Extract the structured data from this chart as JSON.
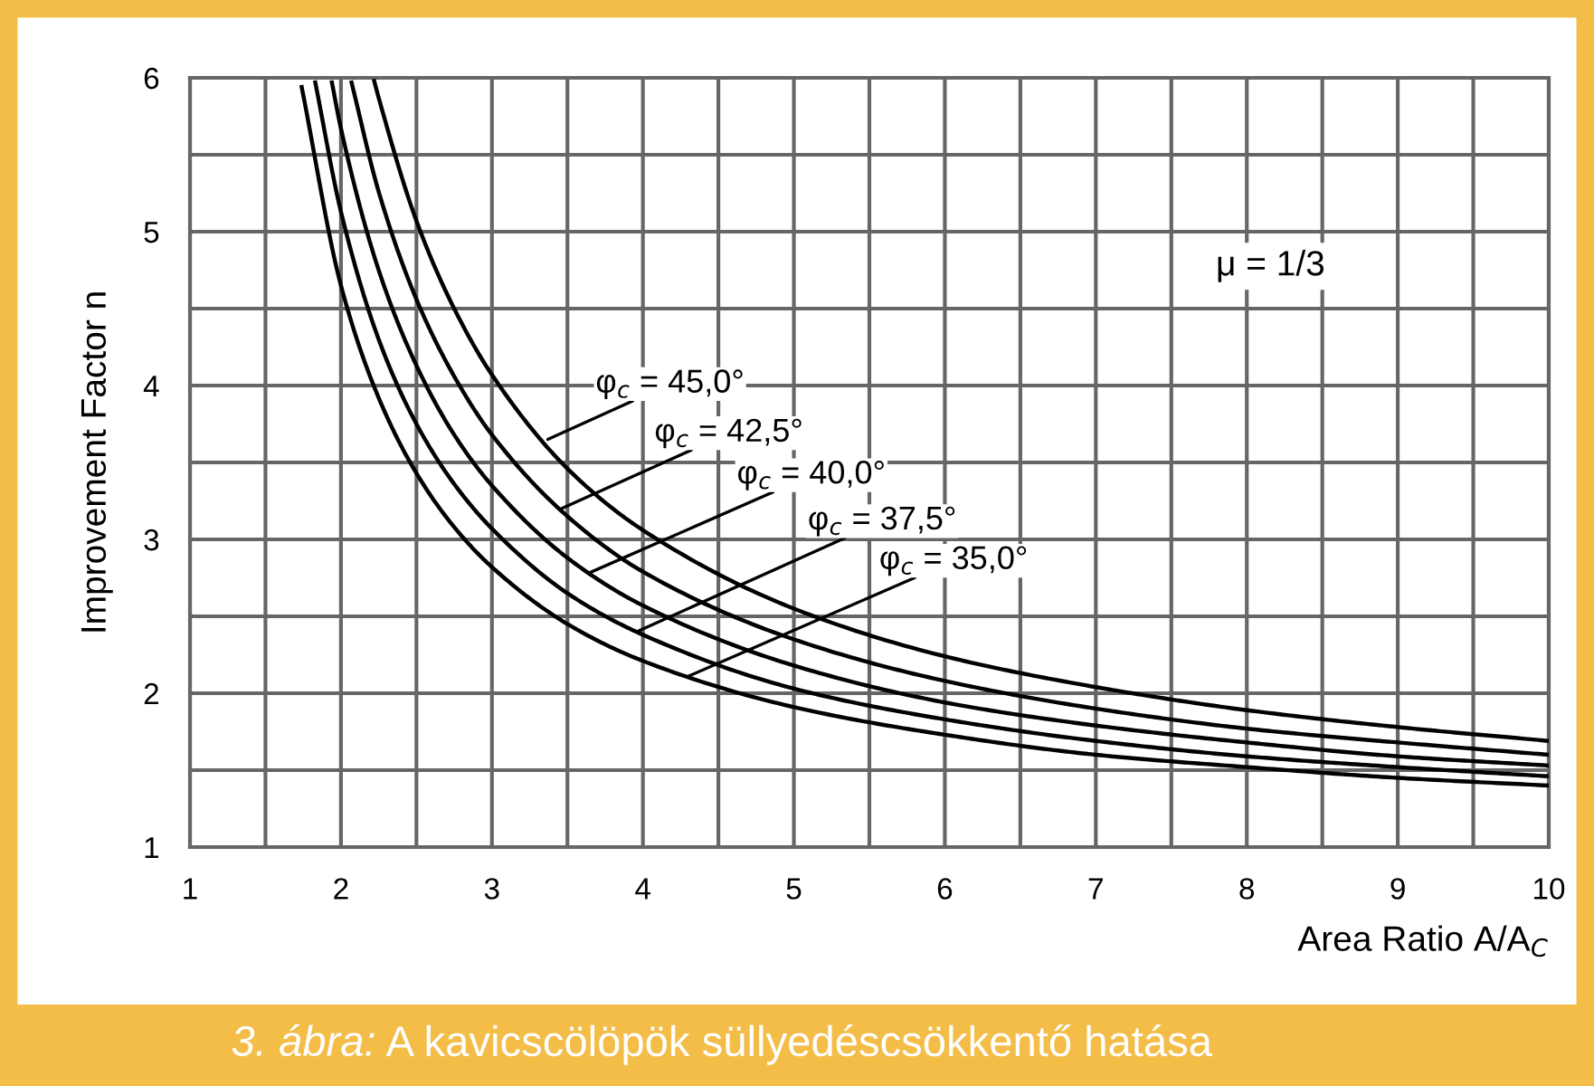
{
  "chart_data": {
    "type": "line",
    "xlabel": "Area Ratio A/A$_{C}$",
    "ylabel": "Improvement Factor n",
    "xlim": [
      1,
      10
    ],
    "ylim": [
      1,
      6
    ],
    "xticks": [
      1,
      {
        "value": 1.5,
        "label": null
      },
      2,
      {
        "value": 2.5,
        "label": null
      },
      3,
      {
        "value": 3.5,
        "label": null
      },
      4,
      {
        "value": 4.5,
        "label": null
      },
      5,
      {
        "value": 5.5,
        "label": null
      },
      6,
      {
        "value": 6.5,
        "label": null
      },
      7,
      {
        "value": 7.5,
        "label": null
      },
      8,
      {
        "value": 8.5,
        "label": null
      },
      9,
      {
        "value": 9.5,
        "label": null
      },
      10
    ],
    "yticks": [
      1,
      {
        "value": 1.5,
        "label": null
      },
      2,
      {
        "value": 2.5,
        "label": null
      },
      3,
      {
        "value": 3.5,
        "label": null
      },
      4,
      {
        "value": 4.5,
        "label": null
      },
      5,
      {
        "value": 5.5,
        "label": null
      },
      6
    ],
    "grid": true,
    "legend": false,
    "marker": "none",
    "line_style": "solid",
    "series": [
      {
        "color": "#000000",
        "x": [
          2.22,
          2.25,
          2.5,
          2.75,
          3,
          3.5,
          4,
          5,
          6,
          7,
          8,
          9,
          10
        ],
        "values": [
          5.98,
          5.87,
          5.07,
          4.5,
          4.07,
          3.46,
          3.06,
          2.55,
          2.24,
          2.04,
          1.89,
          1.78,
          1.69
        ]
      },
      {
        "color": "#000000",
        "x": [
          2.07,
          2.25,
          2.5,
          2.75,
          3,
          3.5,
          4,
          5,
          6,
          7,
          8,
          9,
          10
        ],
        "values": [
          5.97,
          5.26,
          4.56,
          4.06,
          3.68,
          3.15,
          2.79,
          2.35,
          2.08,
          1.9,
          1.77,
          1.68,
          1.6
        ]
      },
      {
        "color": "#000000",
        "x": [
          1.94,
          2,
          2.25,
          2.5,
          2.75,
          3,
          3.5,
          4,
          5,
          6,
          7,
          8,
          9,
          10
        ],
        "values": [
          5.97,
          5.67,
          4.75,
          4.13,
          3.68,
          3.35,
          2.88,
          2.57,
          2.18,
          1.94,
          1.79,
          1.68,
          1.59,
          1.53
        ]
      },
      {
        "color": "#000000",
        "x": [
          1.83,
          2,
          2.25,
          2.5,
          2.75,
          3,
          3.5,
          4,
          5,
          6,
          7,
          8,
          9,
          10
        ],
        "values": [
          5.97,
          5.13,
          4.3,
          3.75,
          3.36,
          3.07,
          2.65,
          2.38,
          2.03,
          1.83,
          1.69,
          1.59,
          1.52,
          1.46
        ]
      },
      {
        "color": "#000000",
        "x": [
          1.74,
          2,
          2.25,
          2.5,
          2.75,
          3,
          3.5,
          4,
          5,
          6,
          7,
          8,
          9,
          10
        ],
        "values": [
          5.94,
          4.65,
          3.92,
          3.43,
          3.08,
          2.82,
          2.45,
          2.21,
          1.91,
          1.73,
          1.6,
          1.52,
          1.45,
          1.4
        ]
      }
    ],
    "annotations": [
      {
        "text": "φ$_{c}$ = 45,0°",
        "x": 3.37,
        "y": 3.65
      },
      {
        "text": "φ$_{c}$ = 42,5°",
        "x": 3.46,
        "y": 3.2
      },
      {
        "text": "φ$_{c}$ = 40,0°",
        "x": 3.64,
        "y": 2.78
      },
      {
        "text": "φ$_{c}$ = 37,5°",
        "x": 3.96,
        "y": 2.4
      },
      {
        "text": "φ$_{c}$ = 35,0°",
        "x": 4.3,
        "y": 2.11
      },
      "μ = 1/3",
      "3. ábra:",
      "A kavicscölöpök süllyedéscsökkentő hatása"
    ]
  }
}
